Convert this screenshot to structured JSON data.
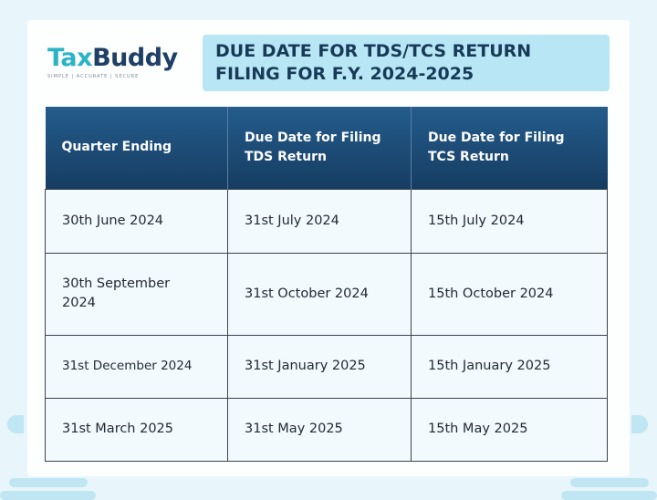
{
  "logo": {
    "part1": "Tax",
    "part2": "Buddy",
    "tagline": "SIMPLE | ACCURATE | SECURE"
  },
  "title": {
    "line1": "DUE DATE FOR TDS/TCS RETURN",
    "line2": "FILING FOR F.Y. 2024-2025"
  },
  "table": {
    "headers": [
      [
        "Quarter Ending"
      ],
      [
        "Due Date for Filing",
        "TDS Return"
      ],
      [
        "Due Date for Filing",
        "TCS Return"
      ]
    ],
    "rows": [
      [
        "30th June 2024",
        "31st July 2024",
        "15th July 2024"
      ],
      [
        "30th September 2024",
        "31st October 2024",
        "15th October 2024"
      ],
      [
        "31st December 2024",
        "31st January 2025",
        "15th January 2025"
      ],
      [
        "31st March 2025",
        "31st May 2025",
        "15th May 2025"
      ]
    ]
  },
  "colors": {
    "header": "#1d4f7c",
    "title_bg": "#b9e6f4",
    "brand_teal": "#2bb3c6",
    "brand_navy": "#1f3f66"
  }
}
